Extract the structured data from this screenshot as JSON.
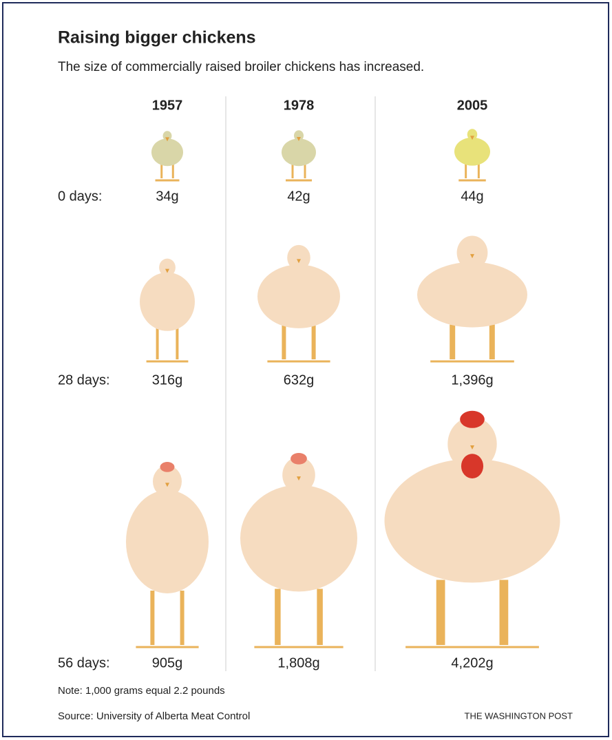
{
  "header": {
    "title": "Raising bigger chickens",
    "subtitle": "The size of commercially raised broiler chickens has increased."
  },
  "columns": [
    "1957",
    "1978",
    "2005"
  ],
  "rows": [
    {
      "label": "0 days:",
      "weights": [
        "34g",
        "42g",
        "44g"
      ]
    },
    {
      "label": "28 days:",
      "weights": [
        "316g",
        "632g",
        "1,396g"
      ]
    },
    {
      "label": "56 days:",
      "weights": [
        "905g",
        "1,808g",
        "4,202g"
      ]
    }
  ],
  "footer": {
    "note": "Note: 1,000 grams equal 2.2 pounds",
    "source": "Source: University of Alberta Meat Control",
    "credit": "THE WASHINGTON POST"
  }
}
